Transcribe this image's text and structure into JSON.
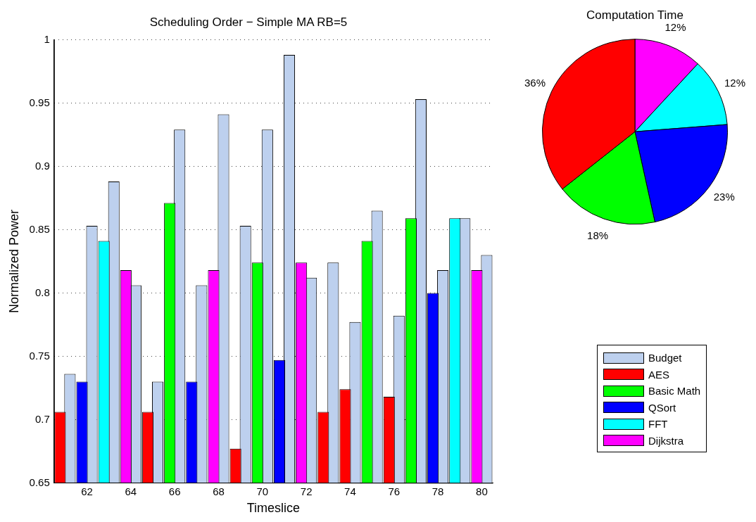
{
  "chart_data": [
    {
      "type": "bar",
      "title": "Scheduling Order − Simple MA RB=5",
      "xlabel": "Timeslice",
      "ylabel": "Normalized Power",
      "categories": [
        null,
        "62",
        null,
        "64",
        null,
        "66",
        null,
        "68",
        null,
        "70",
        null,
        "72",
        null,
        "74",
        null,
        "76",
        null,
        "78",
        null,
        "80"
      ],
      "series": [
        {
          "name": "Budget",
          "color": "#bdd0ee",
          "values": [
            0.736,
            0.853,
            0.888,
            0.806,
            0.73,
            0.929,
            0.806,
            0.941,
            0.853,
            0.929,
            0.988,
            0.812,
            0.824,
            0.777,
            0.865,
            0.782,
            0.953,
            0.818,
            0.859,
            0.83
          ]
        },
        {
          "name": "AES",
          "color": "#ff0000",
          "values": [
            0.706,
            null,
            null,
            null,
            0.706,
            null,
            null,
            null,
            0.677,
            null,
            null,
            null,
            0.706,
            0.724,
            null,
            0.718,
            null,
            null,
            null,
            null
          ]
        },
        {
          "name": "Basic Math",
          "color": "#00ff00",
          "values": [
            null,
            null,
            null,
            null,
            null,
            0.871,
            null,
            null,
            null,
            0.824,
            null,
            null,
            null,
            null,
            0.841,
            null,
            0.859,
            null,
            null,
            null
          ]
        },
        {
          "name": "QSort",
          "color": "#0000ff",
          "values": [
            null,
            0.73,
            null,
            null,
            null,
            null,
            0.73,
            null,
            null,
            null,
            0.747,
            null,
            null,
            null,
            null,
            null,
            null,
            0.8,
            null,
            null
          ]
        },
        {
          "name": "FFT",
          "color": "#00ffff",
          "values": [
            null,
            null,
            0.841,
            null,
            null,
            null,
            null,
            null,
            null,
            null,
            null,
            null,
            null,
            null,
            null,
            null,
            null,
            null,
            0.859,
            null
          ]
        },
        {
          "name": "Dijkstra",
          "color": "#ff00ff",
          "values": [
            null,
            null,
            null,
            0.818,
            null,
            null,
            null,
            0.818,
            null,
            null,
            null,
            0.824,
            null,
            null,
            null,
            null,
            null,
            null,
            null,
            0.818
          ]
        }
      ],
      "ylim": [
        0.65,
        1
      ],
      "yticks": [
        0.65,
        0.7,
        0.75,
        0.8,
        0.85,
        0.9,
        0.95,
        1
      ],
      "grid": "y",
      "legend": "right"
    },
    {
      "type": "pie",
      "title": "Computation Time",
      "categories": [
        null,
        null,
        null,
        null,
        null
      ],
      "values": [
        12,
        12,
        23,
        18,
        36
      ],
      "value_labels": [
        "12%",
        "12%",
        "23%",
        "18%",
        "36%"
      ],
      "colors": [
        "#ff00ff",
        "#00ffff",
        "#0000ff",
        "#00ff00",
        "#ff0000"
      ],
      "legend": false
    }
  ]
}
